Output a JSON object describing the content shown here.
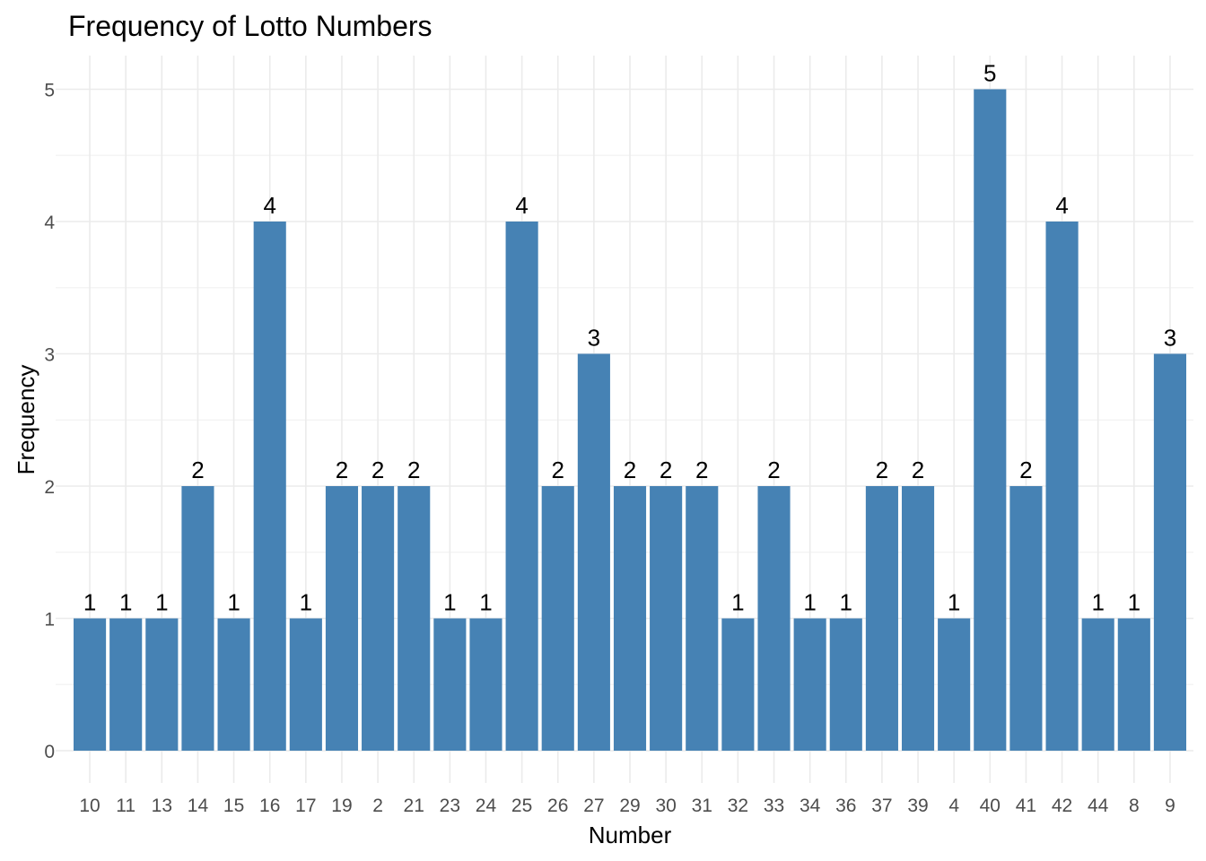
{
  "chart_data": {
    "type": "bar",
    "title": "Frequency of Lotto Numbers",
    "xlabel": "Number",
    "ylabel": "Frequency",
    "categories": [
      "10",
      "11",
      "13",
      "14",
      "15",
      "16",
      "17",
      "19",
      "2",
      "21",
      "23",
      "24",
      "25",
      "26",
      "27",
      "29",
      "30",
      "31",
      "32",
      "33",
      "34",
      "36",
      "37",
      "39",
      "4",
      "40",
      "41",
      "42",
      "44",
      "8",
      "9"
    ],
    "values": [
      1,
      1,
      1,
      2,
      1,
      4,
      1,
      2,
      2,
      2,
      1,
      1,
      4,
      2,
      3,
      2,
      2,
      2,
      1,
      2,
      1,
      1,
      2,
      2,
      1,
      5,
      2,
      4,
      1,
      1,
      3
    ],
    "ylim": [
      0,
      5
    ],
    "yticks": [
      "0",
      "1",
      "2",
      "3",
      "4",
      "5"
    ],
    "bar_color": "#4682B4",
    "grid": true,
    "legend": "none"
  }
}
